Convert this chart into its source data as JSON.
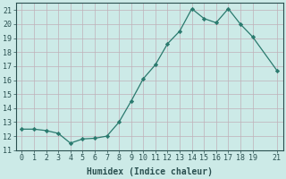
{
  "x": [
    0,
    1,
    2,
    3,
    4,
    5,
    6,
    7,
    8,
    9,
    10,
    11,
    12,
    13,
    14,
    15,
    16,
    17,
    18,
    19,
    21
  ],
  "y": [
    12.5,
    12.5,
    12.4,
    12.2,
    11.5,
    11.8,
    11.85,
    12.0,
    13.0,
    14.5,
    16.1,
    17.1,
    18.6,
    19.5,
    21.1,
    20.4,
    20.1,
    21.1,
    20.0,
    19.1,
    16.7
  ],
  "xlabel": "Humidex (Indice chaleur)",
  "xlim": [
    -0.5,
    21.5
  ],
  "ylim": [
    11,
    21.5
  ],
  "yticks": [
    11,
    12,
    13,
    14,
    15,
    16,
    17,
    18,
    19,
    20,
    21
  ],
  "xticks": [
    0,
    1,
    2,
    3,
    4,
    5,
    6,
    7,
    8,
    9,
    10,
    11,
    12,
    13,
    14,
    15,
    16,
    17,
    18,
    19,
    21
  ],
  "line_color": "#2a7a6e",
  "marker": "D",
  "marker_size": 2.2,
  "bg_color": "#cceae7",
  "grid_minor_color": "#c0b0b8",
  "grid_major_color": "#c0b0b8",
  "tick_color": "#2a5050",
  "label_color": "#2a5050",
  "spine_color": "#2a5050",
  "xlabel_fontsize": 7.0,
  "tick_fontsize": 6.0
}
